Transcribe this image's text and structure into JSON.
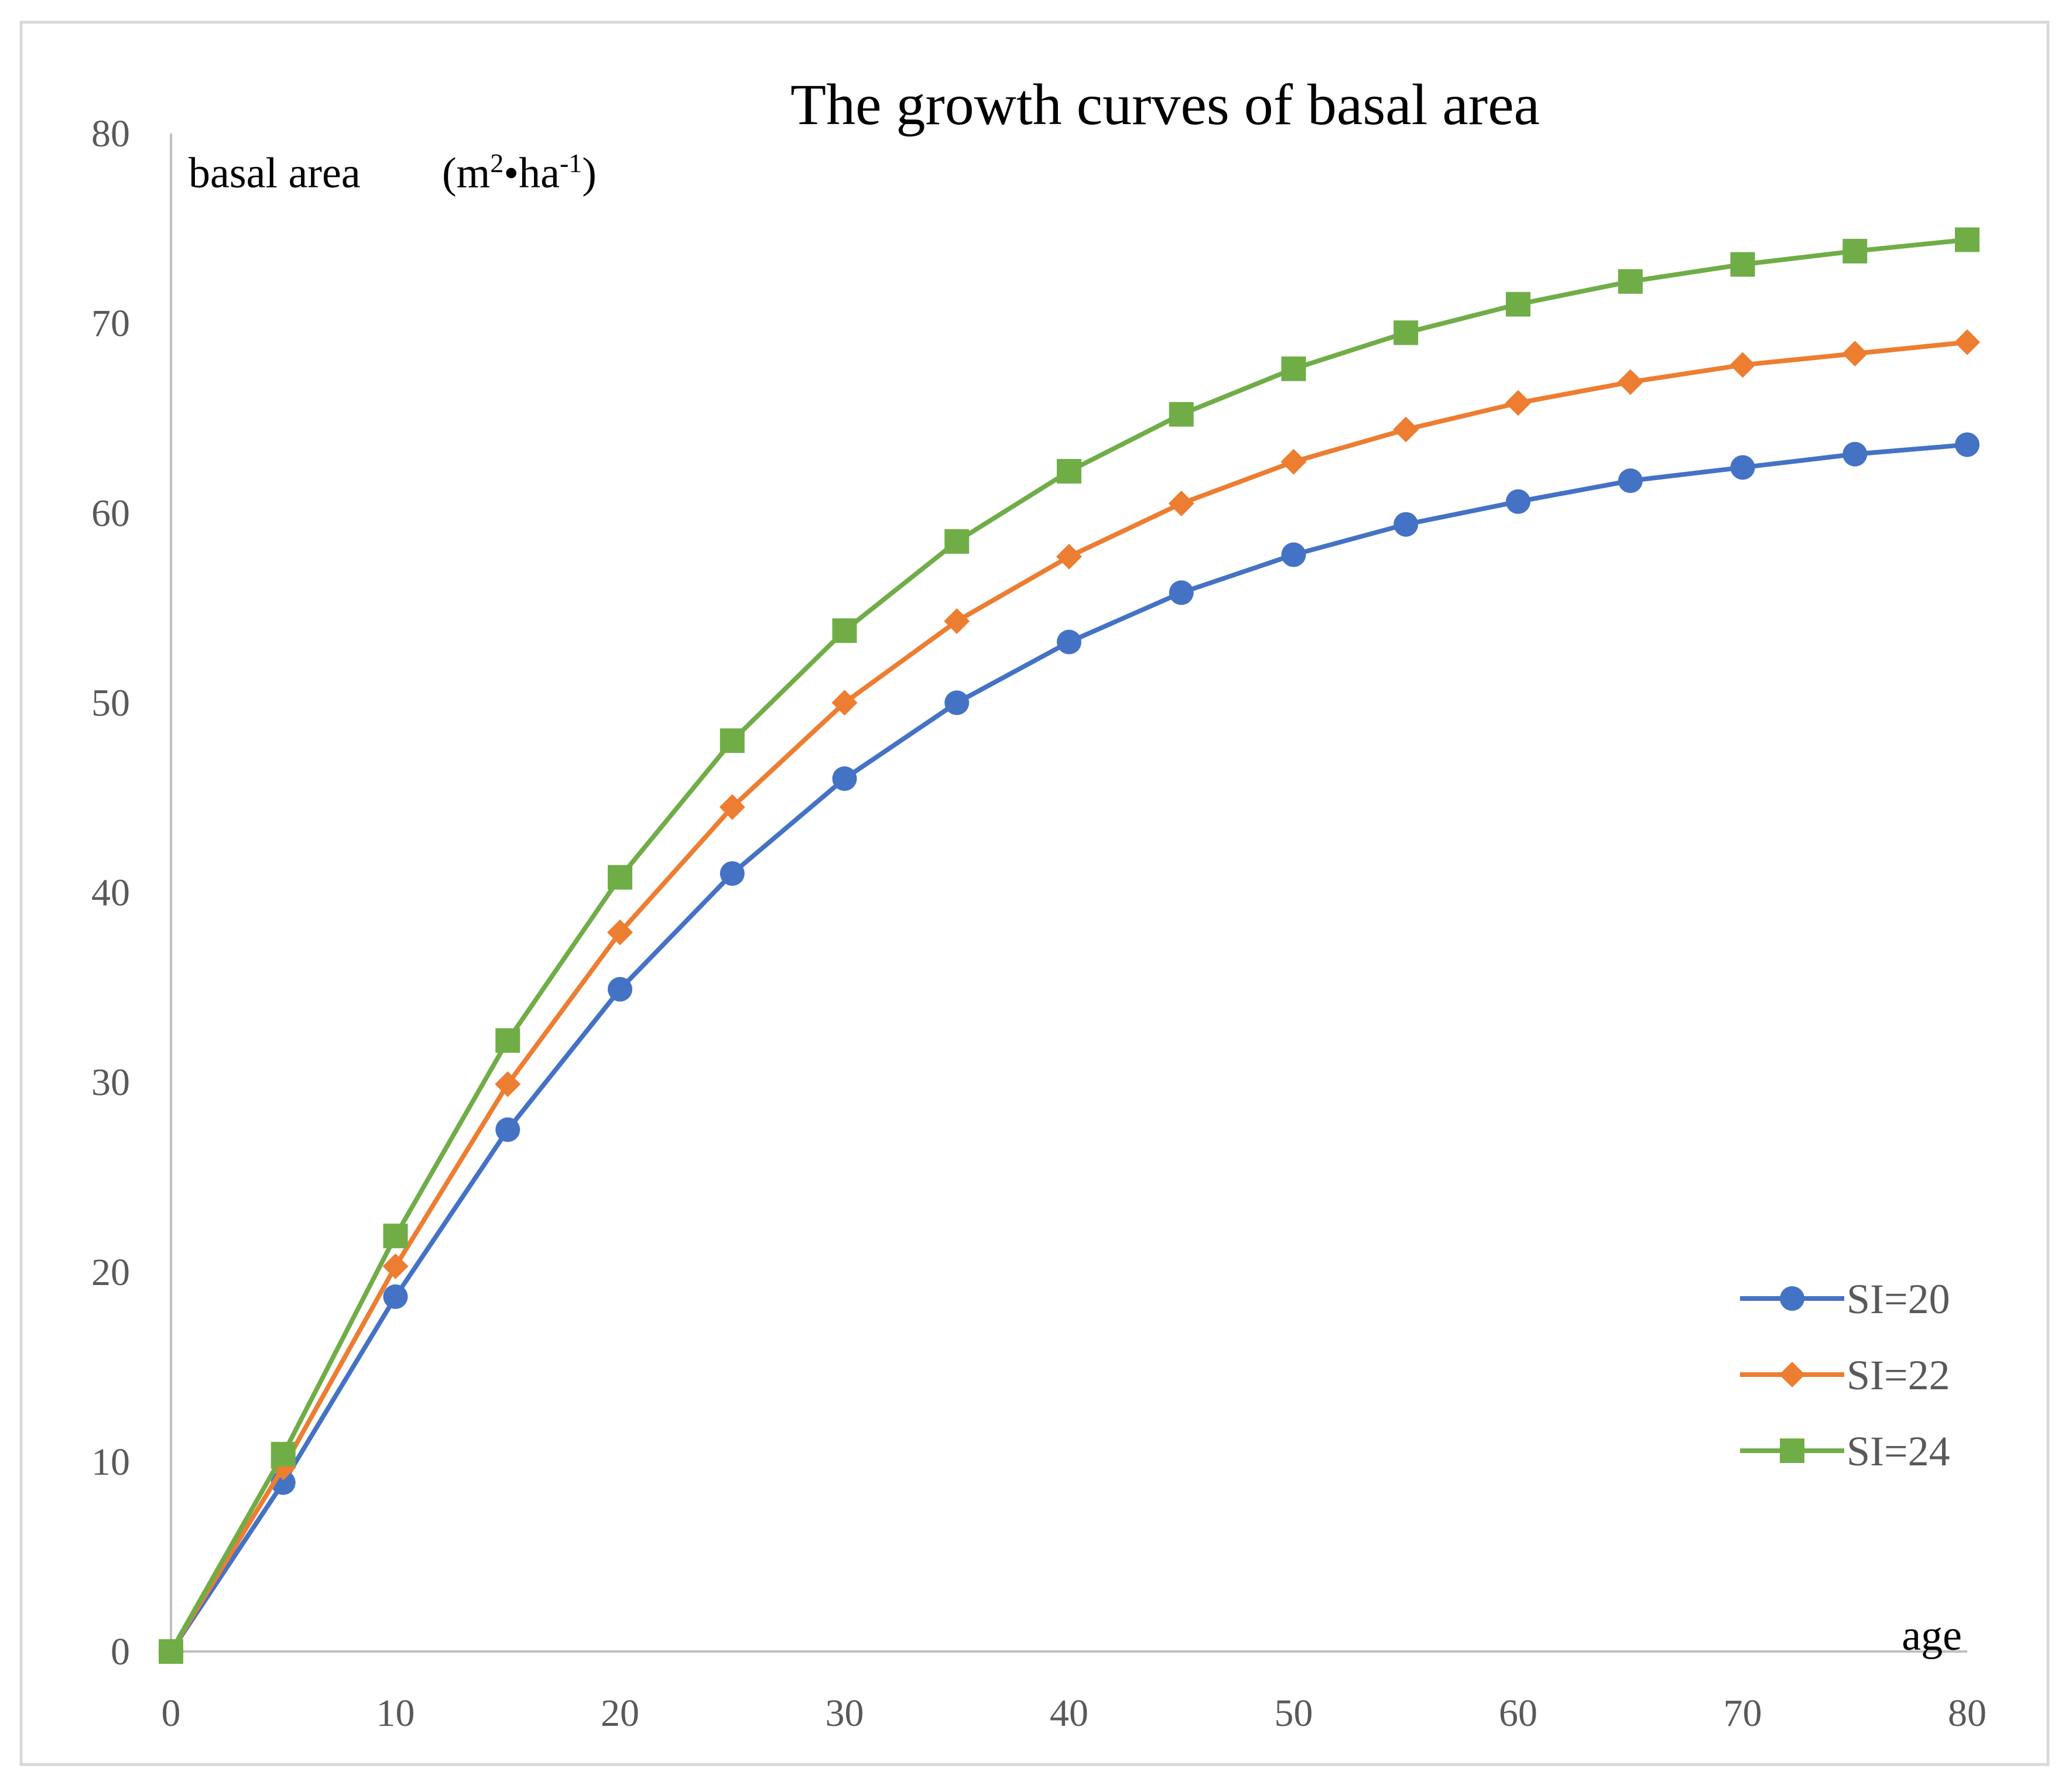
{
  "chart_data": {
    "type": "line",
    "title": "The growth  curves  of  basal  area",
    "ylabel": "basal area",
    "ylabel_unit_open": "(m",
    "ylabel_unit_sup1": "2",
    "ylabel_unit_mid": "•ha",
    "ylabel_unit_sup2": "-1",
    "ylabel_unit_close": ")",
    "xlabel": "age",
    "xlim": [
      0,
      80
    ],
    "ylim": [
      0,
      80
    ],
    "xticks": [
      0,
      10,
      20,
      30,
      40,
      50,
      60,
      70,
      80
    ],
    "yticks": [
      0,
      10,
      20,
      30,
      40,
      50,
      60,
      70,
      80
    ],
    "grid": false,
    "legend_position": "bottom-right",
    "x": [
      0,
      5,
      10,
      15,
      20,
      25,
      30,
      35,
      40,
      45,
      50,
      55,
      60,
      65,
      70,
      75,
      80
    ],
    "series": [
      {
        "name": "SI=20",
        "marker": "circle",
        "color": "#4472C4",
        "values": [
          0,
          8.9,
          18.7,
          27.5,
          34.9,
          41.0,
          46.0,
          50.0,
          53.2,
          55.8,
          57.8,
          59.4,
          60.6,
          61.7,
          62.4,
          63.1,
          63.6
        ]
      },
      {
        "name": "SI=22",
        "marker": "diamond",
        "color": "#ED7D31",
        "values": [
          0,
          9.7,
          20.3,
          29.9,
          37.9,
          44.5,
          50.0,
          54.3,
          57.7,
          60.5,
          62.7,
          64.4,
          65.8,
          66.9,
          67.8,
          68.4,
          69.0
        ]
      },
      {
        "name": "SI=24",
        "marker": "square",
        "color": "#70AD47",
        "values": [
          0,
          10.4,
          21.9,
          32.2,
          40.8,
          48.0,
          53.8,
          58.5,
          62.2,
          65.2,
          67.6,
          69.5,
          71.0,
          72.2,
          73.1,
          73.8,
          74.4
        ]
      }
    ]
  },
  "colors": {
    "frame": "#D9D9D9",
    "axis": "#BFBFBF",
    "tick_text": "#595959"
  }
}
